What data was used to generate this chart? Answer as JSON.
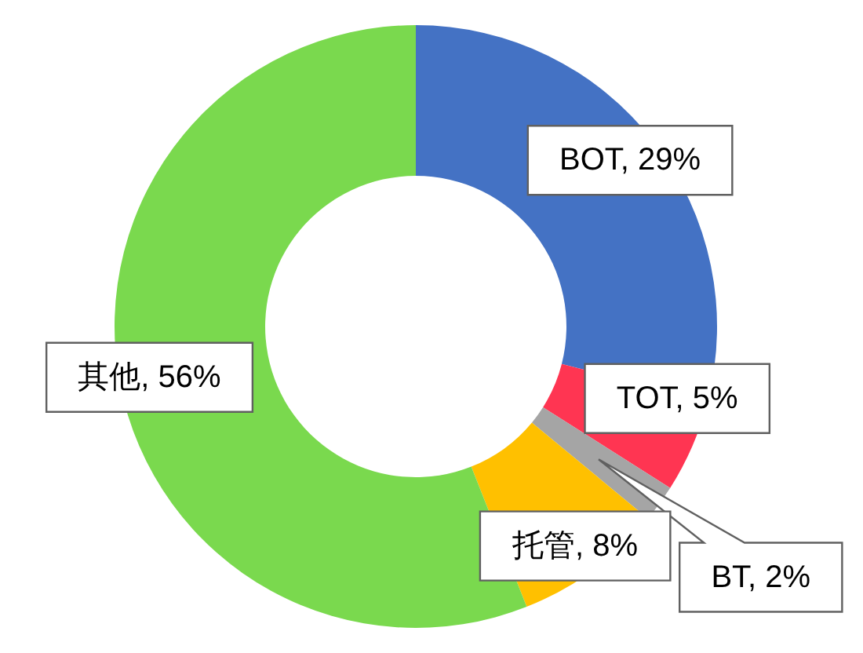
{
  "chart_data": {
    "type": "donut",
    "categories": [
      "BOT",
      "TOT",
      "BT",
      "托管",
      "其他"
    ],
    "values": [
      29,
      5,
      2,
      8,
      56
    ],
    "colors": [
      "#4472c4",
      "#ff3552",
      "#a5a5a5",
      "#ffc000",
      "#7ad94e"
    ],
    "value_labels": [
      ", 29%",
      ", 5%",
      ", 2%",
      ", 8%",
      ", 56%"
    ]
  }
}
